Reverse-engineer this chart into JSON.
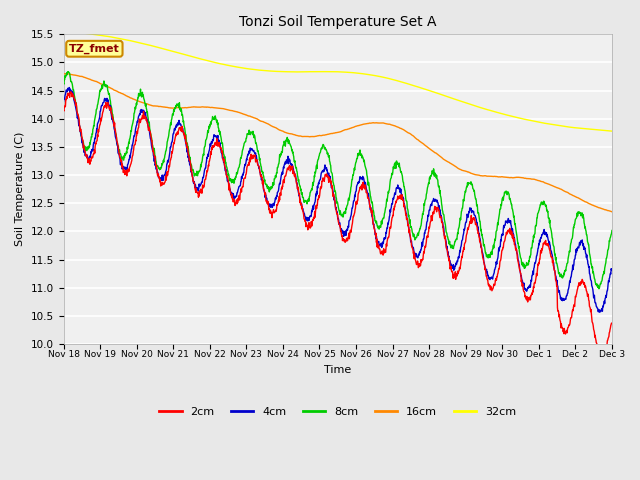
{
  "title": "Tonzi Soil Temperature Set A",
  "xlabel": "Time",
  "ylabel": "Soil Temperature (C)",
  "ylim": [
    10.0,
    15.5
  ],
  "yticks": [
    10.0,
    10.5,
    11.0,
    11.5,
    12.0,
    12.5,
    13.0,
    13.5,
    14.0,
    14.5,
    15.0,
    15.5
  ],
  "xtick_labels": [
    "Nov 18",
    "Nov 19",
    "Nov 20",
    "Nov 21",
    "Nov 22",
    "Nov 23",
    "Nov 24",
    "Nov 25",
    "Nov 26",
    "Nov 27",
    "Nov 28",
    "Nov 29",
    "Nov 30",
    "Dec 1",
    "Dec 2",
    "Dec 3"
  ],
  "series_colors": {
    "2cm": "#ff0000",
    "4cm": "#0000cc",
    "8cm": "#00cc00",
    "16cm": "#ff8800",
    "32cm": "#ffff00"
  },
  "legend_label": "TZ_fmet",
  "legend_box_color": "#ffff99",
  "legend_box_edge_color": "#cc8800",
  "background_color": "#e8e8e8",
  "plot_bg_color": "#f0f0f0",
  "n_points": 1440
}
